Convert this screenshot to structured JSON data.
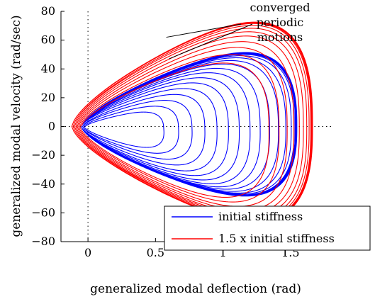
{
  "chart_data": {
    "type": "line",
    "title": "",
    "xlabel": "generalized modal deflection (rad)",
    "ylabel": "generalized modal velocity (rad/sec)",
    "xlim": [
      -0.2,
      1.8
    ],
    "ylim": [
      -80,
      80
    ],
    "x_ticks": [
      0,
      0.5,
      1,
      1.5
    ],
    "x_tick_labels": [
      "0",
      "0.5",
      "1",
      "1.5"
    ],
    "y_ticks": [
      -80,
      -60,
      -40,
      -20,
      0,
      20,
      40,
      60,
      80
    ],
    "y_tick_labels": [
      "−80",
      "−60",
      "−40",
      "−20",
      "0",
      "20",
      "40",
      "60",
      "80"
    ],
    "zero_lines": "dotted",
    "grid": false,
    "legend_position": "bottom-right",
    "annotation": {
      "lines": [
        "converged",
        "periodic",
        "motions"
      ],
      "targets": [
        {
          "x": 0.58,
          "y": 62
        },
        {
          "x": 0.6,
          "y": 47
        }
      ]
    },
    "series": [
      {
        "name": "initial stiffness",
        "color": "#0000ff",
        "trajectory": {
          "peak_x": [
            0.5,
            0.62,
            0.72,
            0.82,
            0.91,
            1.0,
            1.08,
            1.16,
            1.24,
            1.31,
            1.38,
            1.44,
            1.49,
            1.52,
            1.535
          ],
          "vmax": [
            9,
            13,
            17,
            21,
            25,
            29,
            32.5,
            36,
            39,
            42,
            44.5,
            46.5,
            48,
            49,
            49.5
          ],
          "vmin": [
            -11,
            -15,
            -19,
            -23,
            -27,
            -31,
            -34,
            -37,
            -39.5,
            -41.5,
            -43,
            -44.5,
            -45.5,
            -46,
            -46.5
          ],
          "xmin": [
            -0.02,
            -0.03,
            -0.04,
            -0.04,
            -0.05,
            -0.05,
            -0.05,
            -0.05,
            -0.05,
            -0.05,
            -0.05,
            -0.05,
            -0.05,
            -0.05,
            -0.05
          ],
          "converged_cycles": 4
        }
      },
      {
        "name": "1.5 x initial stiffness",
        "color": "#ff0000",
        "trajectory": {
          "peak_x": [
            1.3,
            1.38,
            1.45,
            1.5,
            1.55,
            1.58,
            1.61,
            1.63,
            1.645,
            1.655
          ],
          "vmax": [
            42,
            48,
            53,
            57,
            61,
            64,
            66.5,
            68.5,
            70,
            70.5
          ],
          "vmin": [
            -45,
            -49,
            -52,
            -55,
            -57.5,
            -59.5,
            -61,
            -62.5,
            -63.5,
            -64
          ],
          "xmin": [
            -0.05,
            -0.06,
            -0.07,
            -0.08,
            -0.09,
            -0.1,
            -0.11,
            -0.11,
            -0.12,
            -0.12
          ],
          "converged_cycles": 3
        }
      }
    ]
  }
}
